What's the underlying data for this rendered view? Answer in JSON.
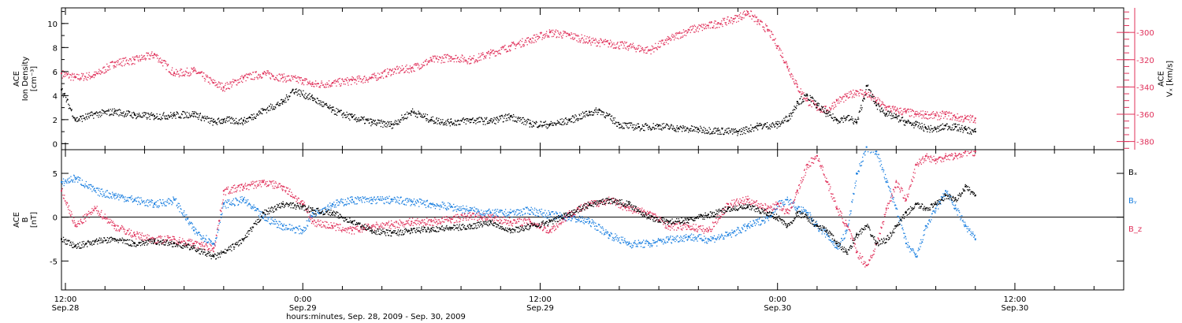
{
  "colors": {
    "black": "#000000",
    "red": "#e0305a",
    "blue": "#1a7fe0"
  },
  "xaxis": {
    "label": "hours:minutes, Sep. 28, 2009 - Sep. 30, 2009",
    "ticks": [
      {
        "t": 12,
        "time": "12:00",
        "date": "Sep.28"
      },
      {
        "t": 24,
        "time": "0:00",
        "date": "Sep.29"
      },
      {
        "t": 36,
        "time": "12:00",
        "date": "Sep.29"
      },
      {
        "t": 48,
        "time": "0:00",
        "date": "Sep.30"
      },
      {
        "t": 60,
        "time": "12:00",
        "date": "Sep.30"
      }
    ]
  },
  "chart_data": [
    {
      "type": "scatter",
      "panel": "top",
      "ylabel_left": [
        "ACE",
        "Ion Density",
        "[cm⁻³]"
      ],
      "ylabel_right": [
        "ACE",
        "Vₓ [km/s]"
      ],
      "ylim": [
        -0.5,
        11.3
      ],
      "yticks": [
        0,
        2,
        4,
        6,
        8,
        10
      ],
      "y2lim": [
        -386,
        -282
      ],
      "y2ticks": [
        -300,
        -320,
        -340,
        -360,
        -380
      ],
      "x_unit": "hours since 0:00 Sep.28",
      "xlim": [
        11.8,
        65.5
      ],
      "series": [
        {
          "name": "Ion Density",
          "color": "black",
          "axis": "left",
          "x": [
            11.8,
            12.5,
            13.5,
            14.5,
            15.5,
            16.5,
            17.5,
            18.5,
            19.5,
            20,
            21,
            22,
            23,
            23.5,
            24.5,
            25.5,
            26.5,
            27.5,
            28.5,
            29.5,
            30.5,
            31.5,
            32.5,
            33.5,
            34.5,
            35.5,
            36.5,
            37.5,
            38.5,
            39,
            40,
            41,
            42,
            43,
            44,
            45,
            46,
            47,
            48,
            48.6,
            49,
            49.5,
            50,
            50.5,
            51,
            51.5,
            52,
            52.5,
            53,
            53.5,
            54,
            54.5,
            55,
            55.5,
            56,
            56.5,
            57,
            57.5,
            58
          ],
          "y": [
            4.5,
            2.0,
            2.5,
            2.7,
            2.4,
            2.3,
            2.4,
            2.5,
            1.8,
            2.0,
            1.9,
            2.8,
            3.5,
            4.5,
            3.8,
            2.8,
            2.2,
            1.8,
            1.6,
            2.7,
            2.0,
            1.8,
            2.0,
            1.9,
            2.3,
            1.7,
            1.6,
            2.0,
            2.6,
            2.8,
            1.6,
            1.4,
            1.5,
            1.3,
            1.2,
            1.1,
            1.0,
            1.5,
            1.6,
            2.3,
            3.5,
            4.0,
            3.2,
            2.5,
            2.0,
            2.2,
            1.8,
            4.8,
            3.2,
            2.5,
            2.2,
            1.8,
            1.6,
            1.3,
            1.2,
            1.5,
            1.4,
            1.2,
            1.0
          ]
        },
        {
          "name": "Vₓ",
          "color": "red",
          "axis": "right",
          "x": [
            11.8,
            12.5,
            13.5,
            14.5,
            15.5,
            16.5,
            17.5,
            18.5,
            19.5,
            20,
            21,
            22,
            23,
            24,
            24.5,
            25.5,
            26.5,
            27.5,
            28.5,
            29.5,
            30.5,
            31.5,
            32.5,
            33.5,
            34.5,
            35.5,
            36.5,
            37.5,
            38.5,
            39.5,
            40.5,
            41.5,
            42.5,
            43.5,
            44.5,
            45,
            45.8,
            46.5,
            47,
            47.5,
            48,
            48.5,
            49,
            49.5,
            50,
            50.5,
            51,
            51.5,
            52,
            52.5,
            53,
            53.5,
            54,
            54.5,
            55,
            55.5,
            56,
            56.5,
            57,
            57.5,
            58
          ],
          "y": [
            -330,
            -333,
            -331,
            -322,
            -320,
            -316,
            -330,
            -328,
            -337,
            -340,
            -333,
            -330,
            -333,
            -335,
            -338,
            -337,
            -335,
            -333,
            -328,
            -326,
            -320,
            -318,
            -320,
            -315,
            -310,
            -305,
            -300,
            -302,
            -306,
            -308,
            -310,
            -313,
            -305,
            -298,
            -295,
            -293,
            -290,
            -285,
            -292,
            -298,
            -310,
            -325,
            -340,
            -350,
            -355,
            -357,
            -350,
            -347,
            -343,
            -345,
            -350,
            -355,
            -357,
            -358,
            -360,
            -360,
            -361,
            -360,
            -362,
            -363,
            -363
          ]
        }
      ]
    },
    {
      "type": "scatter",
      "panel": "bottom",
      "ylabel_left": [
        "ACE",
        "B",
        "[nT]"
      ],
      "ylim": [
        -8.3,
        7.7
      ],
      "yticks": [
        5,
        0,
        -5
      ],
      "x_unit": "hours since 0:00 Sep.28",
      "xlim": [
        11.8,
        65.5
      ],
      "legend": [
        "Bₓ",
        "Bᵧ",
        "B_z"
      ],
      "series": [
        {
          "name": "Bₓ",
          "color": "black",
          "x": [
            11.8,
            12.5,
            13.5,
            14.5,
            15.5,
            16.5,
            17.5,
            18.5,
            19.5,
            20,
            21,
            22,
            23,
            24,
            24.5,
            25.5,
            26.5,
            27.5,
            28.5,
            29.5,
            30.5,
            31.5,
            32.5,
            33.5,
            34.5,
            35.5,
            36.5,
            37.5,
            38.5,
            39.5,
            40.5,
            41.5,
            42.5,
            43.5,
            44.5,
            45.5,
            46.5,
            47.5,
            48,
            48.5,
            49,
            49.5,
            50,
            50.5,
            51,
            51.5,
            52,
            52.5,
            53,
            53.5,
            54,
            54.5,
            55,
            55.5,
            56,
            56.5,
            57,
            57.5,
            58
          ],
          "y": [
            -2.5,
            -3.3,
            -2.7,
            -2.5,
            -3.0,
            -2.7,
            -3.0,
            -3.5,
            -4.5,
            -4.0,
            -2.5,
            0.5,
            1.5,
            1.2,
            0.8,
            0.5,
            -0.5,
            -1.5,
            -1.8,
            -1.5,
            -1.3,
            -1.2,
            -1.0,
            -0.5,
            -1.5,
            -1.0,
            -0.5,
            0.5,
            1.5,
            2.0,
            1.5,
            0.0,
            -0.5,
            -0.3,
            0.3,
            1.0,
            1.2,
            0.5,
            0.0,
            -1.0,
            0.5,
            0.0,
            -1.0,
            -1.5,
            -3.0,
            -4.0,
            -2.0,
            -1.0,
            -3.0,
            -2.5,
            -1.0,
            0.5,
            1.5,
            1.0,
            1.5,
            2.5,
            2.0,
            3.5,
            2.5
          ]
        },
        {
          "name": "Bᵧ",
          "color": "blue",
          "x": [
            11.8,
            12.5,
            13.5,
            14.5,
            15.5,
            16.5,
            17.5,
            18.5,
            19.5,
            20,
            21,
            22,
            23,
            24,
            24.5,
            25.5,
            26.5,
            27.5,
            28.5,
            29.5,
            30.5,
            31.5,
            32.5,
            33.5,
            34.5,
            35.5,
            36.5,
            37.5,
            38.5,
            39.5,
            40.5,
            41.5,
            42.5,
            43.5,
            44.5,
            45.5,
            46.5,
            47.5,
            48,
            48.5,
            49,
            49.5,
            50,
            50.5,
            51,
            51.5,
            52,
            52.5,
            53,
            53.5,
            54,
            54.5,
            55,
            55.5,
            56,
            56.5,
            57,
            57.5,
            58
          ],
          "y": [
            4.0,
            4.5,
            3.0,
            2.5,
            2.0,
            1.5,
            2.0,
            -1.5,
            -3.0,
            1.5,
            2.0,
            0.0,
            -1.0,
            -1.5,
            0.5,
            1.5,
            2.0,
            2.0,
            2.0,
            1.8,
            1.5,
            1.2,
            0.8,
            0.5,
            0.5,
            0.8,
            0.3,
            0.0,
            -0.5,
            -2.0,
            -3.0,
            -3.0,
            -2.5,
            -2.2,
            -2.5,
            -2.0,
            -1.0,
            0.0,
            1.5,
            2.0,
            1.0,
            0.5,
            -1.0,
            -2.0,
            -3.5,
            -1.5,
            5.0,
            8.0,
            7.5,
            4.0,
            1.0,
            -3.0,
            -4.5,
            -1.0,
            1.0,
            3.0,
            1.0,
            -1.0,
            -2.5
          ]
        },
        {
          "name": "B_z",
          "color": "red",
          "x": [
            11.8,
            12.5,
            13.5,
            14.5,
            15.5,
            16.5,
            17.5,
            18.5,
            19.5,
            20,
            21,
            22,
            23,
            24,
            24.5,
            25.5,
            26.5,
            27.5,
            28.5,
            29.5,
            30.5,
            31.5,
            32.5,
            33.5,
            34.5,
            35.5,
            36.5,
            37.5,
            38.5,
            39.5,
            40.5,
            41.5,
            42.5,
            43.5,
            44.5,
            45.5,
            46.5,
            47.5,
            48,
            48.5,
            49,
            49.5,
            50,
            50.5,
            51,
            51.5,
            52,
            52.5,
            53,
            53.5,
            54,
            54.5,
            55,
            55.5,
            56,
            56.5,
            57,
            57.5,
            58
          ],
          "y": [
            3.0,
            -1.0,
            1.0,
            -1.0,
            -2.0,
            -2.5,
            -2.5,
            -3.0,
            -3.5,
            3.0,
            3.5,
            4.0,
            3.5,
            1.5,
            -0.5,
            -1.0,
            -1.5,
            -1.0,
            -0.8,
            -0.5,
            -0.5,
            -0.2,
            0.2,
            0.0,
            -0.5,
            -0.5,
            -1.5,
            0.5,
            1.5,
            2.0,
            1.0,
            0.5,
            -1.0,
            -1.0,
            -1.5,
            1.5,
            2.0,
            1.0,
            1.5,
            0.5,
            3.0,
            6.0,
            7.0,
            4.0,
            1.0,
            -1.0,
            -4.0,
            -5.5,
            -3.0,
            1.0,
            4.0,
            2.0,
            6.0,
            7.0,
            6.5,
            7.0,
            7.0,
            7.5,
            7.5
          ]
        }
      ]
    }
  ]
}
